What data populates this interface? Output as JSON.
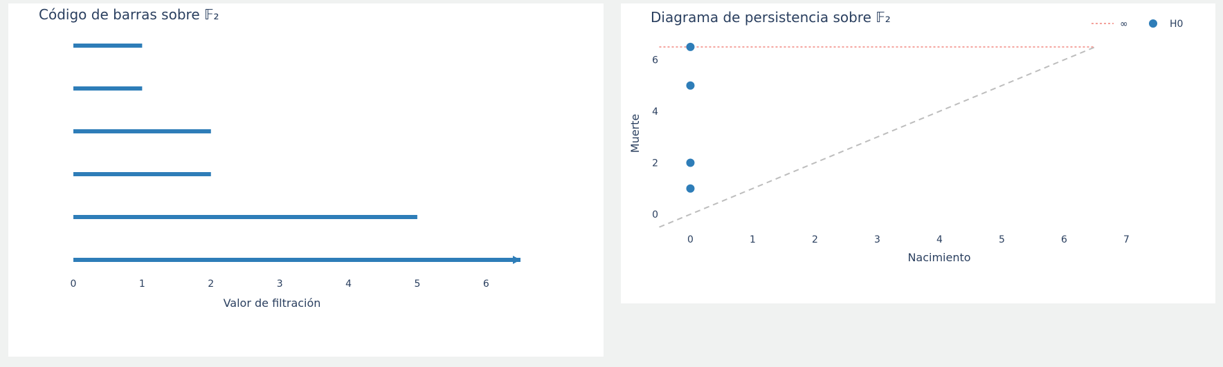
{
  "chart_data": [
    {
      "type": "barcode",
      "title": "Código de barras sobre 𝔽₂",
      "xlabel": "Valor de filtración",
      "ylabel": "",
      "xlim": [
        0,
        6.5
      ],
      "xticks": [
        "0",
        "1",
        "2",
        "3",
        "4",
        "5",
        "6"
      ],
      "bar_color": "#2e7db8",
      "bars": [
        {
          "start": 0,
          "end": 1
        },
        {
          "start": 0,
          "end": 1
        },
        {
          "start": 0,
          "end": 2
        },
        {
          "start": 0,
          "end": 2
        },
        {
          "start": 0,
          "end": 5
        },
        {
          "start": 0,
          "end": 6.5,
          "infinite": true
        }
      ]
    },
    {
      "type": "scatter",
      "title": "Diagrama de persistencia sobre 𝔽₂",
      "xlabel": "Nacimiento",
      "ylabel": "Muerte",
      "xlim": [
        -0.5,
        7
      ],
      "ylim": [
        -0.5,
        6.6
      ],
      "xticks": [
        "0",
        "1",
        "2",
        "3",
        "4",
        "5",
        "6",
        "7"
      ],
      "yticks": [
        "0",
        "2",
        "4",
        "6"
      ],
      "infinity_level": 6.5,
      "legend_position": "top-right",
      "legend": [
        {
          "label": "∞",
          "style": "dotted-line",
          "color": "#f4a19b"
        },
        {
          "label": "H0",
          "style": "marker",
          "color": "#2e7db8"
        }
      ],
      "diagonal": {
        "from": [
          -0.5,
          -0.5
        ],
        "to": [
          6.5,
          6.5
        ],
        "color": "#bdbdbd"
      },
      "series": [
        {
          "name": "H0",
          "color": "#2e7db8",
          "points": [
            {
              "x": 0,
              "y": 6.5
            },
            {
              "x": 0,
              "y": 5
            },
            {
              "x": 0,
              "y": 2
            },
            {
              "x": 0,
              "y": 1
            }
          ]
        }
      ]
    }
  ]
}
